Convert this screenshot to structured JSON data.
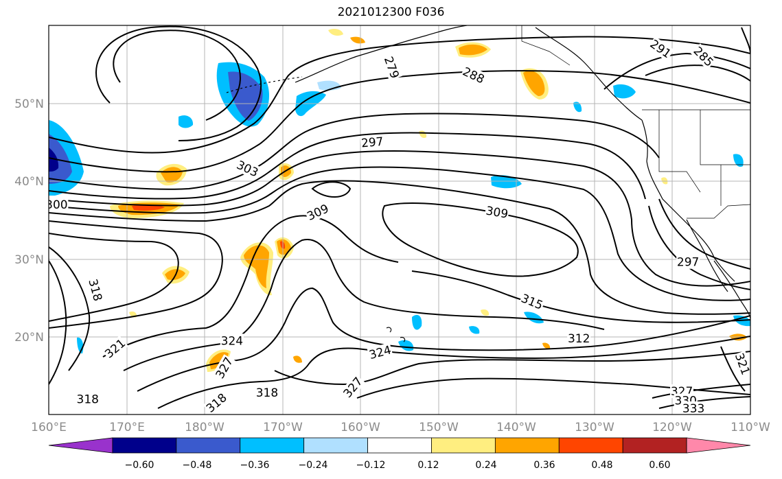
{
  "title": "2021012300 F036",
  "lon_ticks": [
    "160°E",
    "170°E",
    "180°W",
    "170°W",
    "160°W",
    "150°W",
    "140°W",
    "130°W",
    "120°W",
    "110°W"
  ],
  "lat_ticks": [
    "50°N",
    "40°N",
    "30°N",
    "20°N"
  ],
  "contour_labels": [
    {
      "text": "279",
      "lon": -156.0,
      "lat": 54.6,
      "rot": 70
    },
    {
      "text": "288",
      "lon": -145.5,
      "lat": 53.6,
      "rot": 25
    },
    {
      "text": "291",
      "lon": -121.5,
      "lat": 57.0,
      "rot": 35
    },
    {
      "text": "285",
      "lon": -116.0,
      "lat": 56.0,
      "rot": 45
    },
    {
      "text": "297",
      "lon": -158.5,
      "lat": 45.0,
      "rot": -5
    },
    {
      "text": "303",
      "lon": -174.5,
      "lat": 41.6,
      "rot": 25
    },
    {
      "text": "309",
      "lon": -165.5,
      "lat": 36.0,
      "rot": -25
    },
    {
      "text": "309",
      "lon": -142.5,
      "lat": 36.0,
      "rot": 10
    },
    {
      "text": "300",
      "lon": 161.0,
      "lat": 37.0,
      "rot": 0
    },
    {
      "text": "318",
      "lon": 166.0,
      "lat": 26.0,
      "rot": 75
    },
    {
      "text": "315",
      "lon": -138.0,
      "lat": 24.5,
      "rot": 22
    },
    {
      "text": "312",
      "lon": -132.0,
      "lat": 19.8,
      "rot": 0
    },
    {
      "text": "297",
      "lon": -118.0,
      "lat": 29.6,
      "rot": 0
    },
    {
      "text": "321",
      "lon": 168.5,
      "lat": 18.5,
      "rot": -40
    },
    {
      "text": "324",
      "lon": -176.5,
      "lat": 19.5,
      "rot": 0
    },
    {
      "text": "327",
      "lon": -177.5,
      "lat": 16.0,
      "rot": -60
    },
    {
      "text": "318",
      "lon": 165.0,
      "lat": 12.0,
      "rot": 0
    },
    {
      "text": "318",
      "lon": -178.5,
      "lat": 11.5,
      "rot": -40
    },
    {
      "text": "318",
      "lon": -172.0,
      "lat": 12.8,
      "rot": 0
    },
    {
      "text": "324",
      "lon": -157.5,
      "lat": 18.0,
      "rot": -15
    },
    {
      "text": "327",
      "lon": -161.0,
      "lat": 13.5,
      "rot": -50
    },
    {
      "text": "327",
      "lon": -118.8,
      "lat": 13.0,
      "rot": 0
    },
    {
      "text": "330",
      "lon": -118.3,
      "lat": 11.8,
      "rot": 0
    },
    {
      "text": "333",
      "lon": -117.3,
      "lat": 10.8,
      "rot": 0
    },
    {
      "text": "321",
      "lon": -111.0,
      "lat": 16.5,
      "rot": 70
    }
  ],
  "colorbar": {
    "colors": [
      "#9932cc",
      "#00008b",
      "#3a5acd",
      "#00bfff",
      "#b0e0ff",
      "#ffffff",
      "#ffee80",
      "#ffa500",
      "#ff4500",
      "#b22222",
      "#ff88aa"
    ],
    "labels": [
      "−0.60",
      "−0.48",
      "−0.36",
      "−0.24",
      "−0.12",
      "0.12",
      "0.24",
      "0.36",
      "0.48",
      "0.60"
    ]
  }
}
